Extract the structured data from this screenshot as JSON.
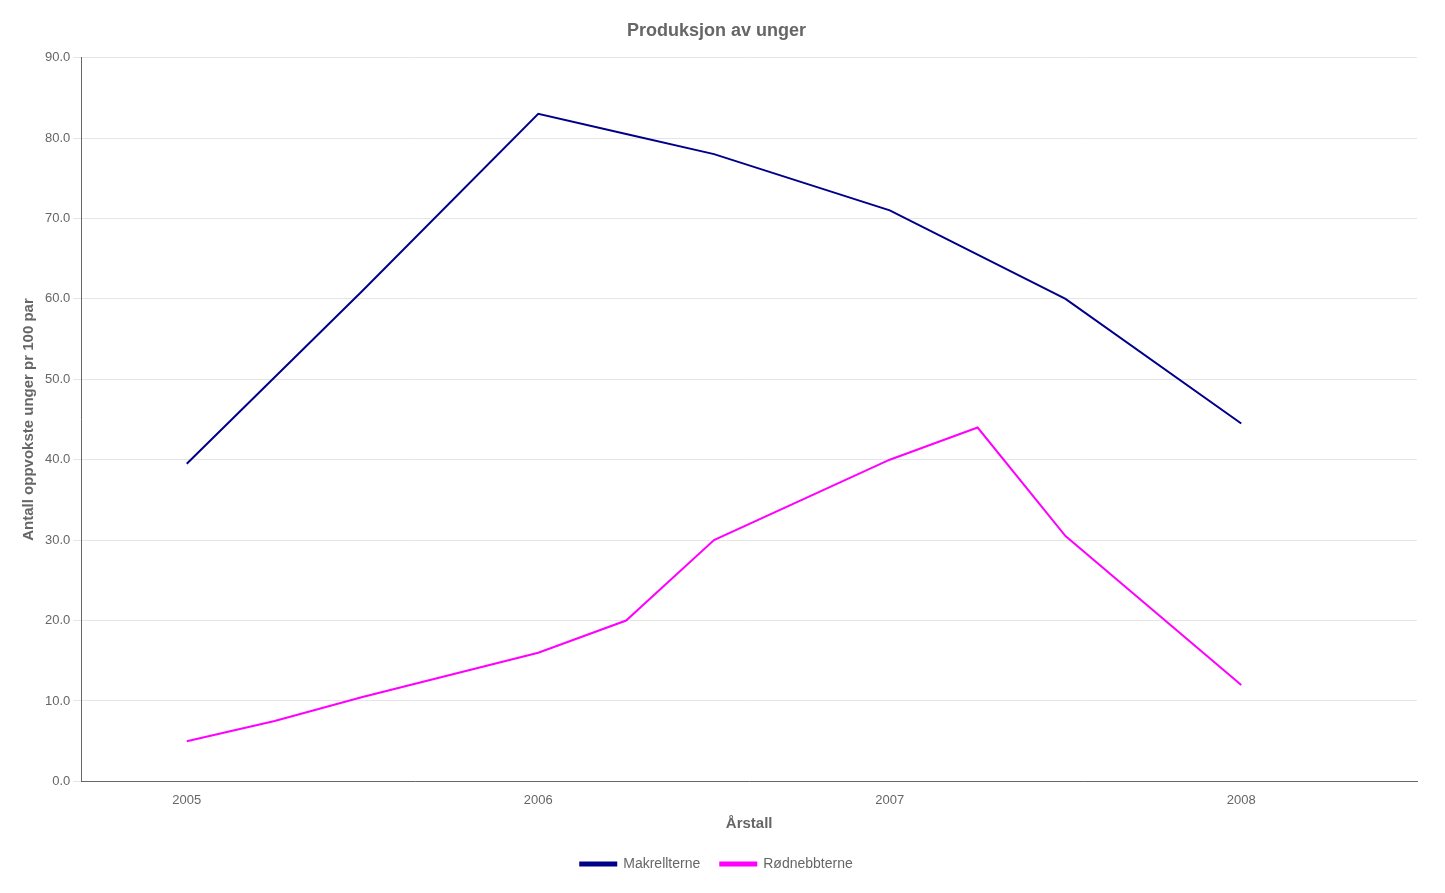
{
  "chart_data": {
    "type": "line",
    "title": "Produksjon av unger",
    "xlabel": "Årstall",
    "ylabel": "Antall oppvokste unger pr 100 par",
    "series": [
      {
        "name": "Makrellterne",
        "color": "#00008B",
        "x": [
          2005,
          2005.5,
          2006,
          2006.25,
          2006.5,
          2007,
          2007.5,
          2008
        ],
        "values": [
          39.5,
          61.0,
          83.0,
          80.5,
          78.0,
          71.0,
          60.0,
          44.5
        ]
      },
      {
        "name": "Rødnebbterne",
        "color": "#FF00FF",
        "x": [
          2005,
          2005.25,
          2005.5,
          2006,
          2006.25,
          2006.5,
          2007,
          2007.25,
          2007.5,
          2008
        ],
        "values": [
          5.0,
          7.5,
          10.5,
          16.0,
          20.0,
          30.0,
          40.0,
          44.0,
          30.5,
          12.0
        ]
      }
    ],
    "xlim": [
      2004.7,
      2008.5
    ],
    "xticks": [
      2005,
      2006,
      2007,
      2008
    ],
    "ylim": [
      0.0,
      90.0
    ],
    "yticks": [
      {
        "value": 0,
        "label": "0.0"
      },
      {
        "value": 10,
        "label": "10.0"
      },
      {
        "value": 20,
        "label": "20.0"
      },
      {
        "value": 30,
        "label": "30.0"
      },
      {
        "value": 40,
        "label": "40.0"
      },
      {
        "value": 50,
        "label": "50.0"
      },
      {
        "value": 60,
        "label": "60.0"
      },
      {
        "value": 70,
        "label": "70.0"
      },
      {
        "value": 80,
        "label": "80.0"
      },
      {
        "value": 90,
        "label": "90.0"
      }
    ],
    "grid": "y",
    "legend": "bottom"
  }
}
